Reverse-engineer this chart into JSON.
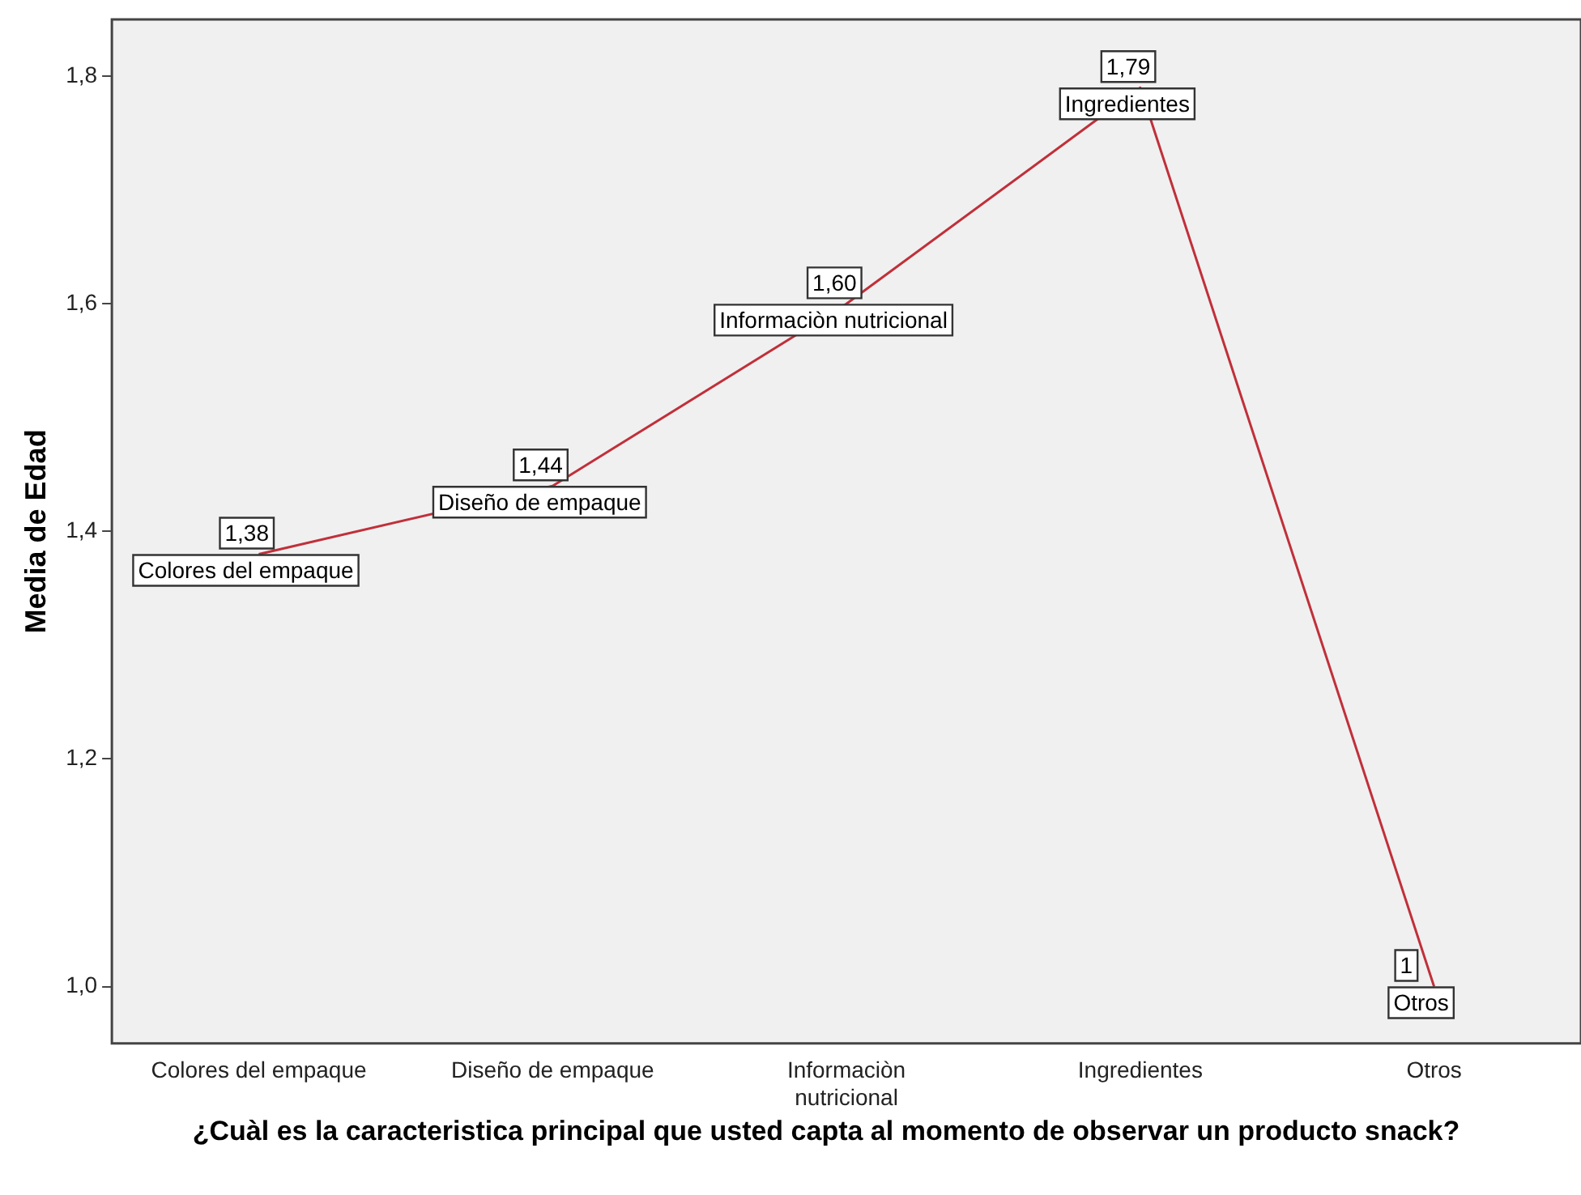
{
  "chart_data": {
    "type": "line",
    "xlabel": "¿Cuàl es la caracteristica principal que usted capta al momento de observar un producto snack?",
    "ylabel": "Media de Edad",
    "categories": [
      "Colores del empaque",
      "Diseño de empaque",
      "Informaciòn nutricional",
      "Ingredientes",
      "Otros"
    ],
    "series": [
      {
        "color": "#c0303a",
        "values": [
          1.38,
          1.44,
          1.6,
          1.79,
          1.0
        ],
        "value_labels": [
          "1,38",
          "1,44",
          "1,60",
          "1,79",
          "1"
        ]
      }
    ],
    "annotations": [
      {
        "text": "Colores del empaque",
        "x": "Colores del empaque",
        "y": 1.38
      },
      {
        "text": "Diseño de empaque",
        "x": "Diseño de empaque",
        "y": 1.44
      },
      {
        "text": "Informaciòn nutricional",
        "x": "Informaciòn nutricional",
        "y": 1.6
      },
      {
        "text": "Ingredientes",
        "x": "Ingredientes",
        "y": 1.79
      },
      {
        "text": "Otros",
        "x": "Otros",
        "y": 1.0
      }
    ],
    "ylim": [
      0.95,
      1.85
    ],
    "yticks": [
      {
        "value": 1.0,
        "label": "1,0"
      },
      {
        "value": 1.2,
        "label": "1,2"
      },
      {
        "value": 1.4,
        "label": "1,4"
      },
      {
        "value": 1.6,
        "label": "1,6"
      },
      {
        "value": 1.8,
        "label": "1,8"
      }
    ],
    "grid": false,
    "legend": false,
    "marker": "none",
    "line_style": "solid"
  }
}
